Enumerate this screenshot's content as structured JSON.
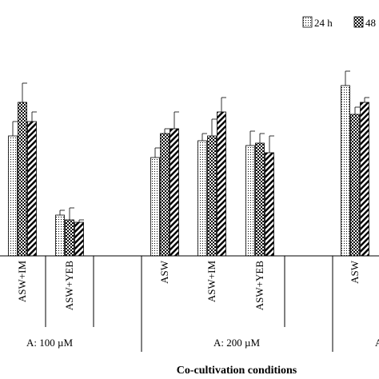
{
  "chart_data": {
    "type": "bar",
    "xlabel": "Co-cultivation conditions",
    "ylabel": "",
    "ylim": [
      0,
      100
    ],
    "legend": {
      "placement": "top-right",
      "visible_entries": [
        "24 h",
        "48"
      ]
    },
    "series": [
      {
        "name": "24 h",
        "pattern": "dots"
      },
      {
        "name": "48",
        "pattern": "checker"
      },
      {
        "name": "",
        "pattern": "diagonal-stripes"
      }
    ],
    "clusters": [
      {
        "label": "ASW+IM",
        "group": "A: 100 µM",
        "values": [
          50,
          64,
          56
        ],
        "errors": [
          6,
          8,
          4
        ]
      },
      {
        "label": "ASW+YEB",
        "group": "A: 100 µM",
        "values": [
          17,
          15,
          14
        ],
        "errors": [
          2,
          5,
          1
        ]
      },
      {
        "label": "ASW",
        "group": "A: 200 µM",
        "values": [
          41,
          51,
          53
        ],
        "errors": [
          4,
          2,
          7
        ]
      },
      {
        "label": "ASW+IM",
        "group": "A: 200 µM",
        "values": [
          48,
          50,
          60
        ],
        "errors": [
          3,
          7,
          6
        ]
      },
      {
        "label": "ASW+YEB",
        "group": "A: 200 µM",
        "values": [
          46,
          47,
          43
        ],
        "errors": [
          6,
          4,
          7
        ]
      },
      {
        "label": "ASW",
        "group": "",
        "values": [
          71,
          59,
          64
        ],
        "errors": [
          6,
          3,
          2
        ]
      }
    ],
    "groups": [
      "A: 100 µM",
      "A: 200 µM"
    ],
    "cut_off_group_label": "A"
  }
}
